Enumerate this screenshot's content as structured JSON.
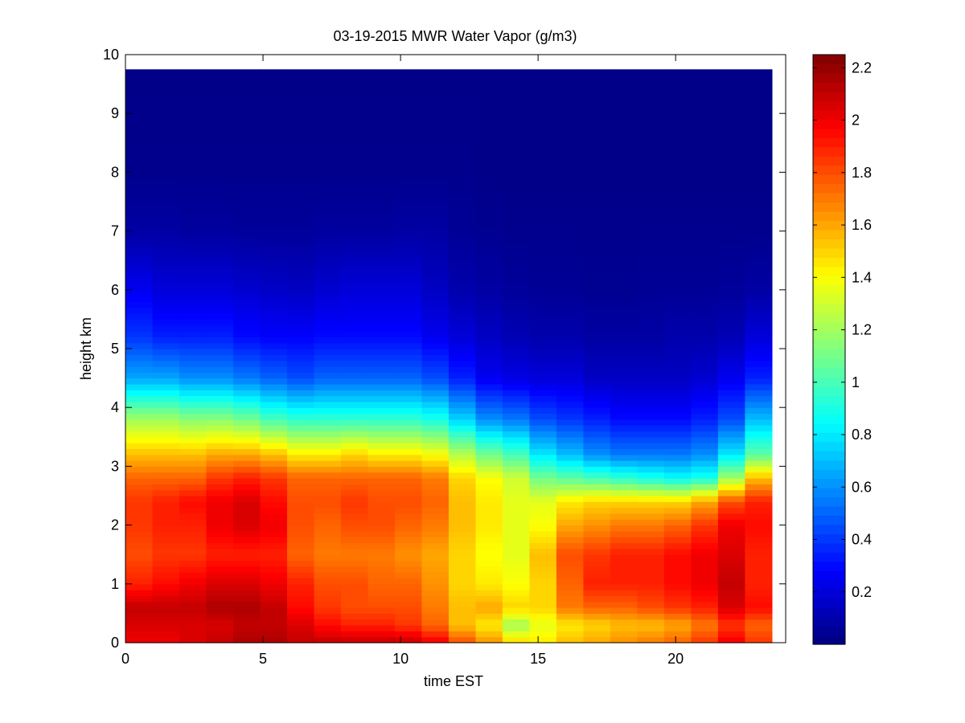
{
  "chart_data": {
    "type": "heatmap",
    "title": "03-19-2015 MWR Water Vapor (g/m3)",
    "xlabel": "time EST",
    "ylabel": "height km",
    "xlim": [
      0,
      24
    ],
    "ylim": [
      0,
      10
    ],
    "clim": [
      0,
      2.25
    ],
    "colormap": "jet",
    "x_ticks": [
      0,
      5,
      10,
      15,
      20
    ],
    "x_tick_labels": [
      "0",
      "5",
      "10",
      "15",
      "20"
    ],
    "y_ticks": [
      0,
      1,
      2,
      3,
      4,
      5,
      6,
      7,
      8,
      9,
      10
    ],
    "y_tick_labels": [
      "0",
      "1",
      "2",
      "3",
      "4",
      "5",
      "6",
      "7",
      "8",
      "9",
      "10"
    ],
    "colorbar_ticks": [
      0.2,
      0.4,
      0.6,
      0.8,
      1,
      1.2,
      1.4,
      1.6,
      1.8,
      2,
      2.2
    ],
    "colorbar_tick_labels": [
      "0.2",
      "0.4",
      "0.6",
      "0.8",
      "1",
      "1.2",
      "1.4",
      "1.6",
      "1.8",
      "2",
      "2.2"
    ],
    "x": [
      0,
      1,
      2,
      3,
      4,
      5,
      6,
      7,
      8,
      9,
      10,
      11,
      12,
      13,
      14,
      15,
      16,
      17,
      18,
      19,
      20,
      21,
      22,
      23
    ],
    "x_extent": [
      0,
      23.5
    ],
    "y_extent": [
      0,
      9.75
    ],
    "profile_heights": [
      0,
      0.3,
      0.6,
      1.0,
      1.5,
      2.0,
      2.4,
      2.8,
      3.2,
      3.8,
      4.5,
      5.2,
      6.0,
      7.0,
      8.0,
      9.75
    ],
    "values": [
      [
        2.0,
        2.05,
        2.1,
        1.9,
        1.8,
        1.85,
        1.85,
        1.75,
        1.55,
        1.2,
        0.65,
        0.4,
        0.25,
        0.08,
        0.03,
        0.02
      ],
      [
        2.0,
        2.05,
        2.1,
        1.95,
        1.85,
        1.9,
        1.9,
        1.75,
        1.55,
        1.2,
        0.65,
        0.35,
        0.2,
        0.08,
        0.03,
        0.02
      ],
      [
        2.05,
        2.05,
        2.1,
        2.0,
        1.85,
        1.9,
        1.95,
        1.75,
        1.55,
        1.15,
        0.6,
        0.35,
        0.2,
        0.07,
        0.03,
        0.02
      ],
      [
        2.1,
        2.05,
        2.15,
        2.05,
        1.9,
        2.0,
        2.0,
        1.85,
        1.6,
        1.15,
        0.6,
        0.35,
        0.2,
        0.07,
        0.03,
        0.02
      ],
      [
        2.15,
        2.1,
        2.15,
        2.05,
        1.9,
        2.05,
        2.05,
        1.9,
        1.6,
        1.1,
        0.55,
        0.3,
        0.18,
        0.06,
        0.03,
        0.02
      ],
      [
        2.15,
        2.1,
        2.1,
        2.0,
        1.9,
        2.0,
        1.95,
        1.85,
        1.55,
        1.0,
        0.5,
        0.28,
        0.16,
        0.06,
        0.03,
        0.02
      ],
      [
        2.1,
        2.05,
        1.95,
        1.9,
        1.75,
        1.8,
        1.8,
        1.75,
        1.45,
        0.95,
        0.45,
        0.28,
        0.15,
        0.06,
        0.03,
        0.02
      ],
      [
        2.1,
        1.95,
        1.85,
        1.8,
        1.7,
        1.75,
        1.8,
        1.75,
        1.45,
        0.95,
        0.5,
        0.3,
        0.18,
        0.07,
        0.03,
        0.02
      ],
      [
        2.1,
        1.9,
        1.8,
        1.8,
        1.7,
        1.8,
        1.85,
        1.75,
        1.5,
        0.95,
        0.5,
        0.3,
        0.2,
        0.07,
        0.03,
        0.02
      ],
      [
        2.1,
        1.9,
        1.8,
        1.75,
        1.7,
        1.8,
        1.8,
        1.75,
        1.45,
        0.95,
        0.5,
        0.3,
        0.2,
        0.07,
        0.03,
        0.02
      ],
      [
        2.1,
        1.85,
        1.8,
        1.75,
        1.65,
        1.75,
        1.8,
        1.75,
        1.45,
        0.95,
        0.5,
        0.3,
        0.2,
        0.08,
        0.03,
        0.02
      ],
      [
        2.0,
        1.75,
        1.7,
        1.65,
        1.6,
        1.7,
        1.75,
        1.7,
        1.4,
        0.9,
        0.45,
        0.25,
        0.15,
        0.08,
        0.03,
        0.02
      ],
      [
        1.8,
        1.55,
        1.55,
        1.5,
        1.5,
        1.55,
        1.55,
        1.5,
        1.25,
        0.75,
        0.35,
        0.2,
        0.1,
        0.05,
        0.03,
        0.02
      ],
      [
        1.65,
        1.45,
        1.6,
        1.45,
        1.4,
        1.45,
        1.45,
        1.4,
        1.1,
        0.6,
        0.25,
        0.15,
        0.08,
        0.04,
        0.02,
        0.02
      ],
      [
        1.5,
        1.2,
        1.5,
        1.4,
        1.35,
        1.35,
        1.35,
        1.3,
        1.0,
        0.55,
        0.22,
        0.12,
        0.06,
        0.03,
        0.02,
        0.02
      ],
      [
        1.45,
        1.35,
        1.5,
        1.5,
        1.55,
        1.4,
        1.35,
        1.1,
        0.8,
        0.45,
        0.2,
        0.1,
        0.05,
        0.03,
        0.02,
        0.02
      ],
      [
        1.55,
        1.45,
        1.7,
        1.75,
        1.8,
        1.6,
        1.45,
        1.05,
        0.7,
        0.4,
        0.2,
        0.1,
        0.05,
        0.03,
        0.02,
        0.02
      ],
      [
        1.6,
        1.5,
        1.75,
        1.9,
        1.85,
        1.65,
        1.5,
        1.0,
        0.6,
        0.35,
        0.15,
        0.08,
        0.04,
        0.03,
        0.02,
        0.02
      ],
      [
        1.65,
        1.55,
        1.75,
        1.9,
        1.9,
        1.7,
        1.5,
        0.95,
        0.55,
        0.3,
        0.15,
        0.08,
        0.04,
        0.03,
        0.02,
        0.02
      ],
      [
        1.7,
        1.55,
        1.8,
        1.9,
        1.9,
        1.7,
        1.5,
        0.9,
        0.55,
        0.3,
        0.15,
        0.08,
        0.05,
        0.03,
        0.02,
        0.02
      ],
      [
        1.75,
        1.6,
        1.85,
        1.95,
        1.95,
        1.75,
        1.5,
        0.85,
        0.55,
        0.3,
        0.15,
        0.1,
        0.05,
        0.03,
        0.02,
        0.02
      ],
      [
        1.85,
        1.7,
        1.9,
        2.0,
        2.0,
        1.85,
        1.6,
        0.9,
        0.6,
        0.35,
        0.18,
        0.1,
        0.05,
        0.03,
        0.02,
        0.02
      ],
      [
        2.0,
        1.85,
        2.05,
        2.1,
        2.05,
        2.0,
        1.8,
        1.2,
        0.8,
        0.45,
        0.25,
        0.12,
        0.06,
        0.03,
        0.02,
        0.02
      ],
      [
        1.85,
        1.75,
        1.95,
        1.9,
        1.9,
        1.95,
        1.9,
        1.55,
        1.05,
        0.7,
        0.35,
        0.2,
        0.08,
        0.03,
        0.02,
        0.02
      ]
    ]
  }
}
